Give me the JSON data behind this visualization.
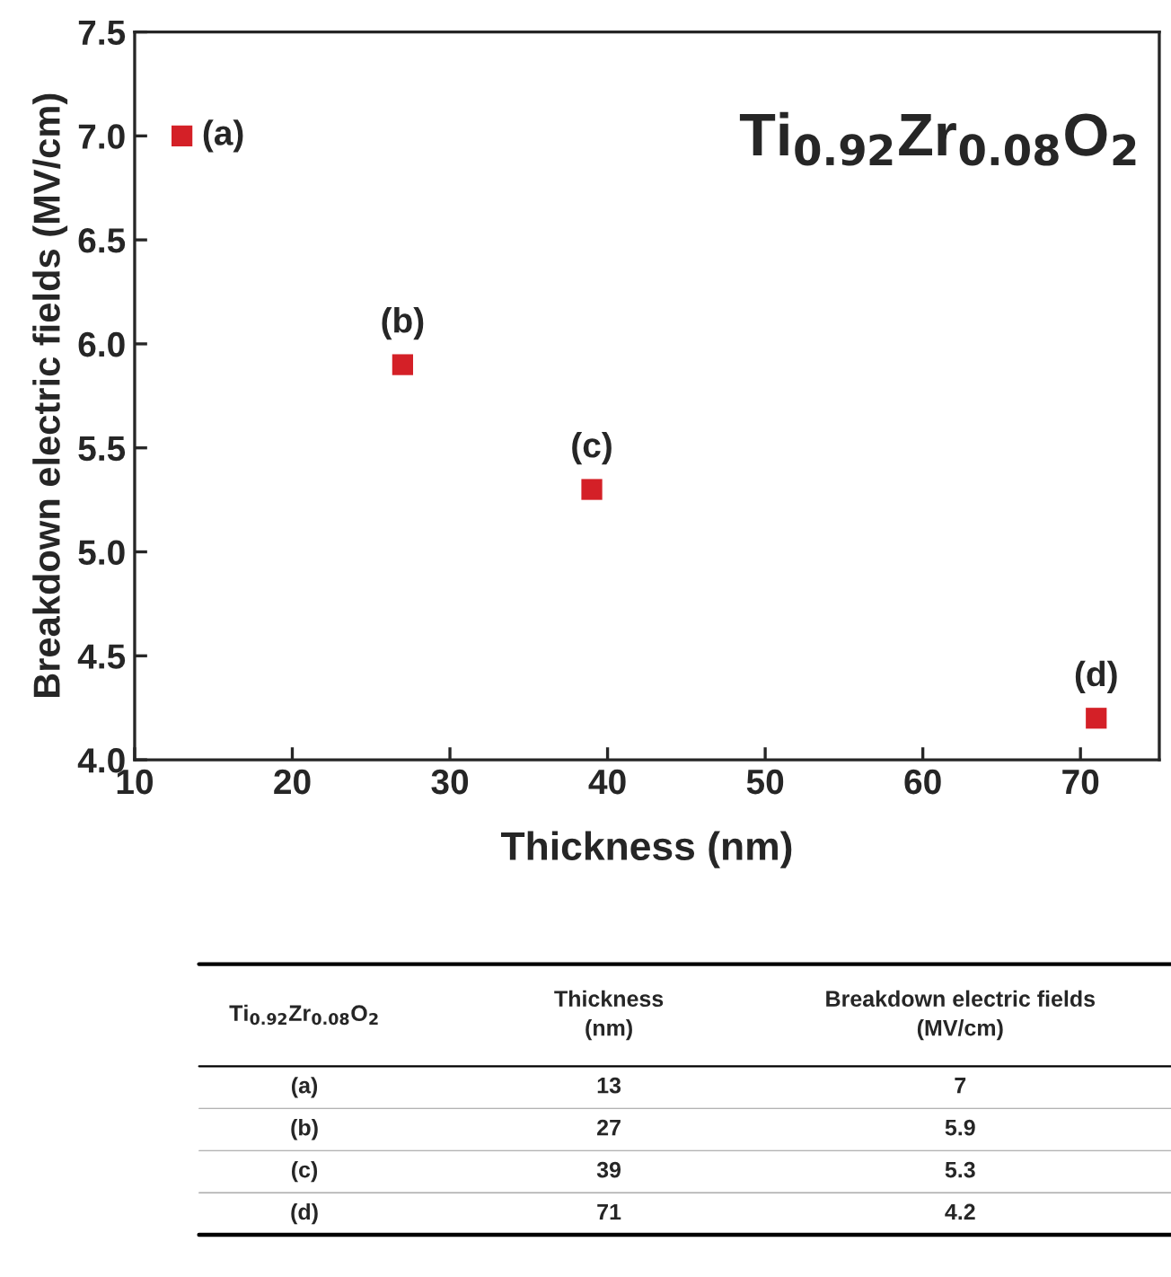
{
  "chart_data": {
    "type": "scatter",
    "xlabel": "Thickness (nm)",
    "ylabel": "Breakdown electric fields (MV/cm)",
    "x": [
      13,
      27,
      39,
      71
    ],
    "series": [
      {
        "color": "#d42027",
        "values": [
          7,
          5.9,
          5.3,
          4.2
        ]
      }
    ],
    "marker": "square",
    "grid": false,
    "xlim": [
      10,
      75
    ],
    "xticks": [
      10,
      20,
      30,
      40,
      50,
      60,
      70
    ],
    "ylim": [
      4,
      7.5
    ],
    "yticks": [
      {
        "value": 4,
        "label": "4.0"
      },
      {
        "value": 4.5,
        "label": "4.5"
      },
      {
        "value": 5,
        "label": "5.0"
      },
      {
        "value": 5.5,
        "label": "5.5"
      },
      {
        "value": 6,
        "label": "6.0"
      },
      {
        "value": 6.5,
        "label": "6.5"
      },
      {
        "value": 7,
        "label": "7.0"
      },
      {
        "value": 7.5,
        "label": "7.5"
      }
    ],
    "annotations": [
      "Ti$_{0.92}$Zr$_{0.08}$O$_{2}$",
      {
        "text": "(a)",
        "x": 13,
        "y": 7
      },
      {
        "text": "(b)",
        "x": 27,
        "y": 5.9
      },
      {
        "text": "(c)",
        "x": 39,
        "y": 5.3
      },
      {
        "text": "(d)",
        "x": 71,
        "y": 4.2
      },
      "Ti$_{0.92}$Zr$_{0.08}$O$_{2}$",
      "Thickness\n(nm)",
      "Breakdown electric fields\n(MV/cm)",
      "13",
      "7",
      "27",
      "5.9",
      "39",
      "5.3",
      "71",
      "4.2"
    ]
  }
}
